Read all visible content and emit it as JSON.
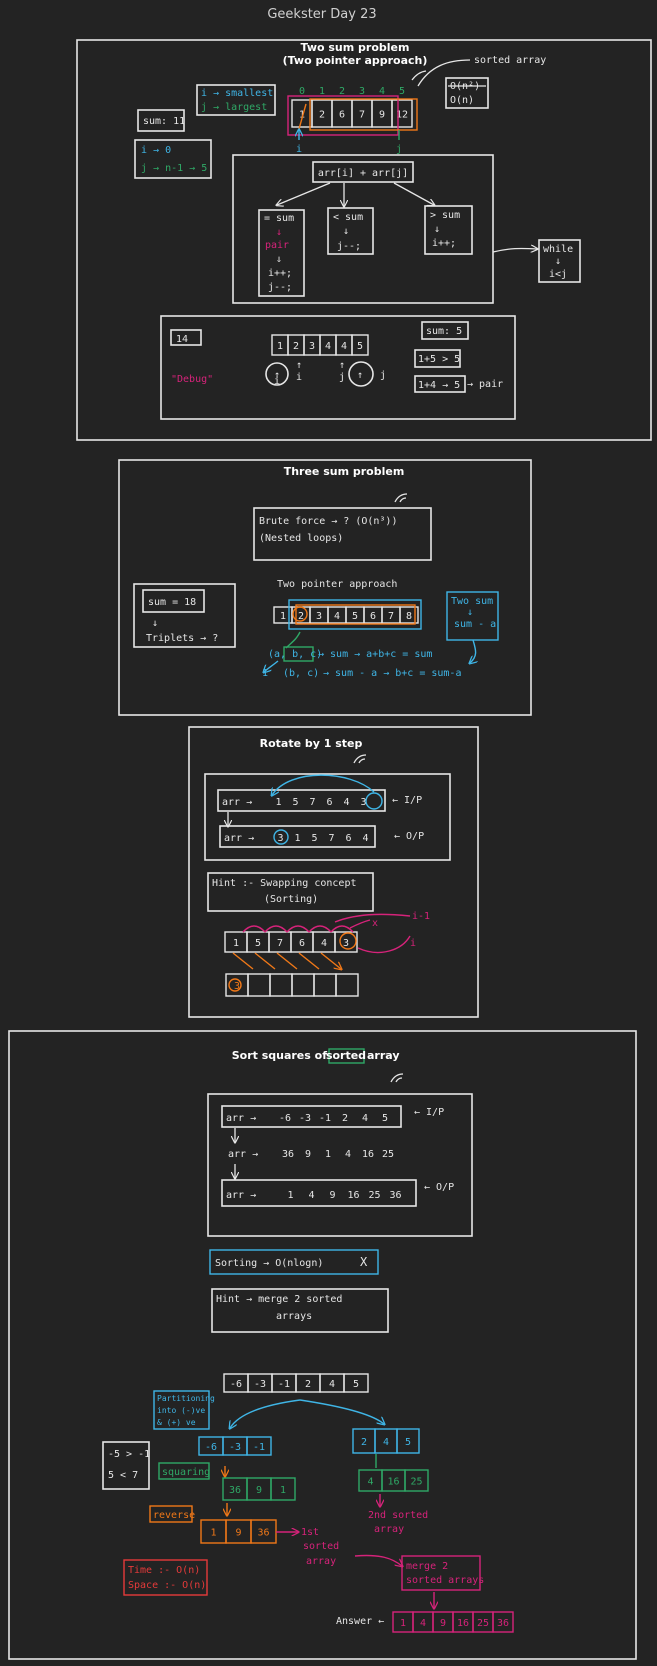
{
  "page_title": "Geekster Day 23",
  "two_sum": {
    "title": "Two sum problem",
    "subtitle": "(Two pointer approach)",
    "sorted_array_note": "sorted array",
    "indices": [
      "0",
      "1",
      "2",
      "3",
      "4",
      "5"
    ],
    "array": [
      "1",
      "2",
      "6",
      "7",
      "9",
      "12"
    ],
    "complexity_struck": "O(n²)",
    "complexity": "O(n)",
    "sum_label": "sum: 11",
    "i_note": "i → smallest",
    "j_note": "j → largest",
    "i_init": "i → 0",
    "j_init": "j → n-1 → 5",
    "i_ptr": "i",
    "j_ptr": "j",
    "condition": "arr[i] + arr[j]",
    "branch_eq": "= sum",
    "branch_eq_action": "pair",
    "branch_eq_steps": [
      "i++;",
      "j--;"
    ],
    "branch_lt": "< sum",
    "branch_lt_step": "j--;",
    "branch_gt": "> sum",
    "branch_gt_step": "i++;",
    "while_label": "while",
    "while_cond": "i<j",
    "debug_value": "14",
    "debug_array": [
      "1",
      "2",
      "3",
      "4",
      "4",
      "5"
    ],
    "debug_sum": "sum: 5",
    "debug_check1": "1+5 > 5",
    "debug_check2": "1+4 → 5",
    "debug_pair": "→ pair",
    "debug_label": "\"Debug\"",
    "debug_ptrs": [
      "i",
      "i",
      "j",
      "j"
    ]
  },
  "three_sum": {
    "title": "Three sum problem",
    "brute": "Brute force → ? (O(n³))",
    "brute_sub": "(Nested loops)",
    "sum_box": "sum = 18",
    "triplets": "Triplets → ?",
    "approach": "Two pointer approach",
    "array": [
      "1",
      "2",
      "3",
      "4",
      "5",
      "6",
      "7",
      "8"
    ],
    "two_sum_box": "Two sum",
    "two_sum_sub": "sum - a",
    "eq1_lhs": "(a, b, c)",
    "eq1_rhs": "→ sum → a+b+c = sum",
    "eq2_lhs": "(b, c)",
    "eq2_rhs": "→ sum - a → b+c = sum-a",
    "eq2_num": "1"
  },
  "rotate": {
    "title": "Rotate by 1 step",
    "row1_label": "arr →",
    "row1": [
      "1",
      "5",
      "7",
      "6",
      "4",
      "3"
    ],
    "row1_tag": "← I/P",
    "row2_label": "arr →",
    "row2": [
      "3",
      "1",
      "5",
      "7",
      "6",
      "4"
    ],
    "row2_tag": "← O/P",
    "hint": "Hint :- Swapping concept",
    "hint_sub": "(Sorting)",
    "cells": [
      "1",
      "5",
      "7",
      "6",
      "4",
      "3"
    ],
    "marks": [
      "i-1",
      "x",
      "i"
    ],
    "out_cells": [
      "3",
      "",
      "",
      "",
      "",
      ""
    ]
  },
  "sort_squares": {
    "title_pre": "Sort squares of",
    "title_hl": "sorted",
    "title_post": "array",
    "in_label": "arr →",
    "in_values": [
      "-6",
      "-3",
      "-1",
      "2",
      "4",
      "5"
    ],
    "in_tag": "← I/P",
    "mid_label": "arr →",
    "mid_values": [
      "36",
      "9",
      "1",
      "4",
      "16",
      "25"
    ],
    "out_label": "arr →",
    "out_values": [
      "1",
      "4",
      "9",
      "16",
      "25",
      "36"
    ],
    "out_tag": "← O/P",
    "sorting": "Sorting → O(nlogn)",
    "sorting_mark": "X",
    "hint": "Hint → merge 2 sorted",
    "hint_sub": "arrays",
    "split_array": [
      "-6",
      "-3",
      "-1",
      "2",
      "4",
      "5"
    ],
    "partition_note": [
      "Partitioning",
      "into (-)ve",
      "& (+) ve"
    ],
    "cmp1": "-5 > -1",
    "cmp2": "5 < 7",
    "left_neg": [
      "-6",
      "-3",
      "-1"
    ],
    "squaring": "squaring",
    "left_sq": [
      "36",
      "9",
      "1"
    ],
    "reverse": "reverse",
    "left_rev": [
      "1",
      "9",
      "36"
    ],
    "first_sorted": [
      "1st",
      "sorted",
      "array"
    ],
    "right_pos": [
      "2",
      "4",
      "5"
    ],
    "right_sq": [
      "4",
      "16",
      "25"
    ],
    "second_sorted": [
      "2nd sorted",
      "array"
    ],
    "merge": [
      "merge 2",
      "sorted arrays"
    ],
    "answer_label": "Answer ←",
    "answer": [
      "1",
      "4",
      "9",
      "16",
      "25",
      "36"
    ],
    "time": "Time :- O(n)",
    "space": "Space :- O(n)"
  }
}
